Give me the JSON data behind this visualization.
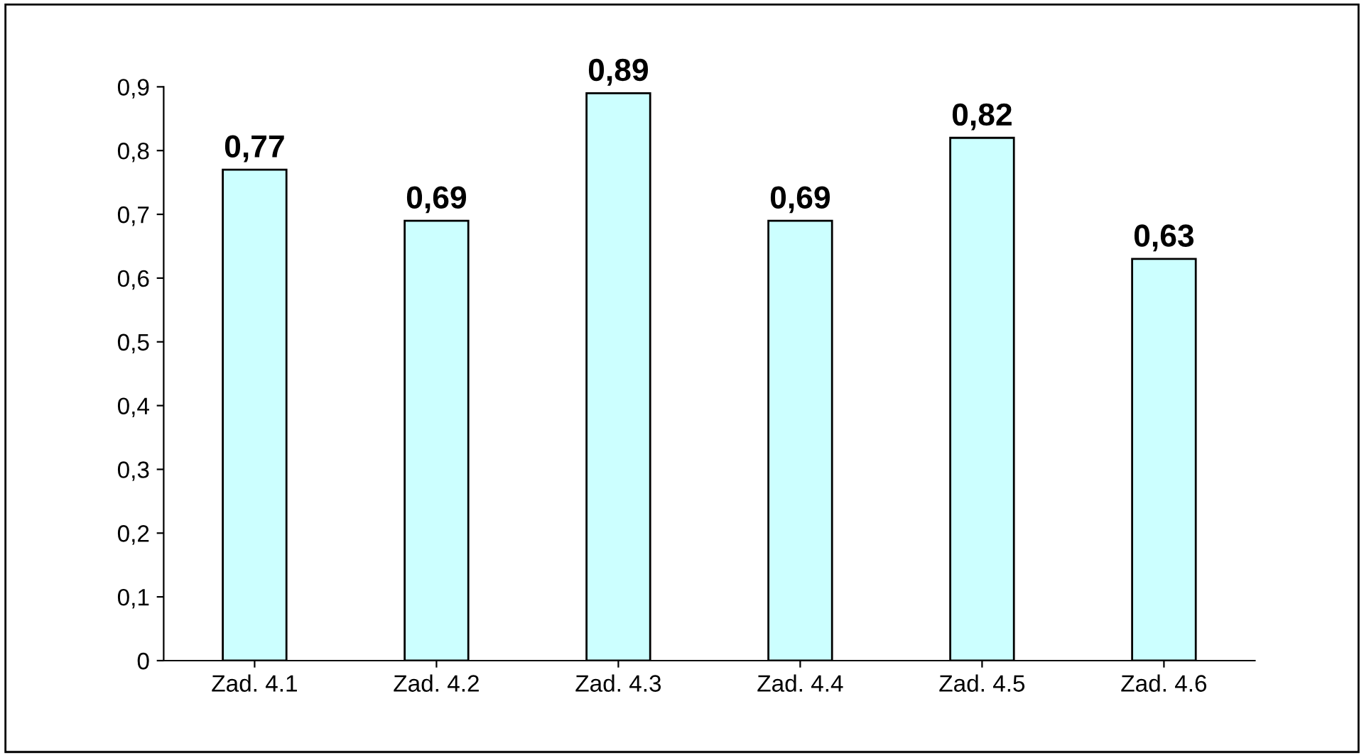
{
  "chart_data": {
    "type": "bar",
    "categories": [
      "Zad. 4.1",
      "Zad. 4.2",
      "Zad. 4.3",
      "Zad. 4.4",
      "Zad. 4.5",
      "Zad. 4.6"
    ],
    "values": [
      0.77,
      0.69,
      0.89,
      0.69,
      0.82,
      0.63
    ],
    "value_labels": [
      "0,77",
      "0,69",
      "0,89",
      "0,69",
      "0,82",
      "0,63"
    ],
    "color": "#ccffff",
    "ylim": [
      0,
      0.9
    ],
    "yticks": [
      0,
      {
        "value": 0.1,
        "label": "0,1"
      },
      {
        "value": 0.2,
        "label": "0,2"
      },
      {
        "value": 0.3,
        "label": "0,3"
      },
      {
        "value": 0.4,
        "label": "0,4"
      },
      {
        "value": 0.5,
        "label": "0,5"
      },
      {
        "value": 0.6,
        "label": "0,6"
      },
      {
        "value": 0.7,
        "label": "0,7"
      },
      {
        "value": 0.8,
        "label": "0,8"
      },
      {
        "value": 0.9,
        "label": "0,9"
      }
    ],
    "grid": false,
    "legend": false
  }
}
